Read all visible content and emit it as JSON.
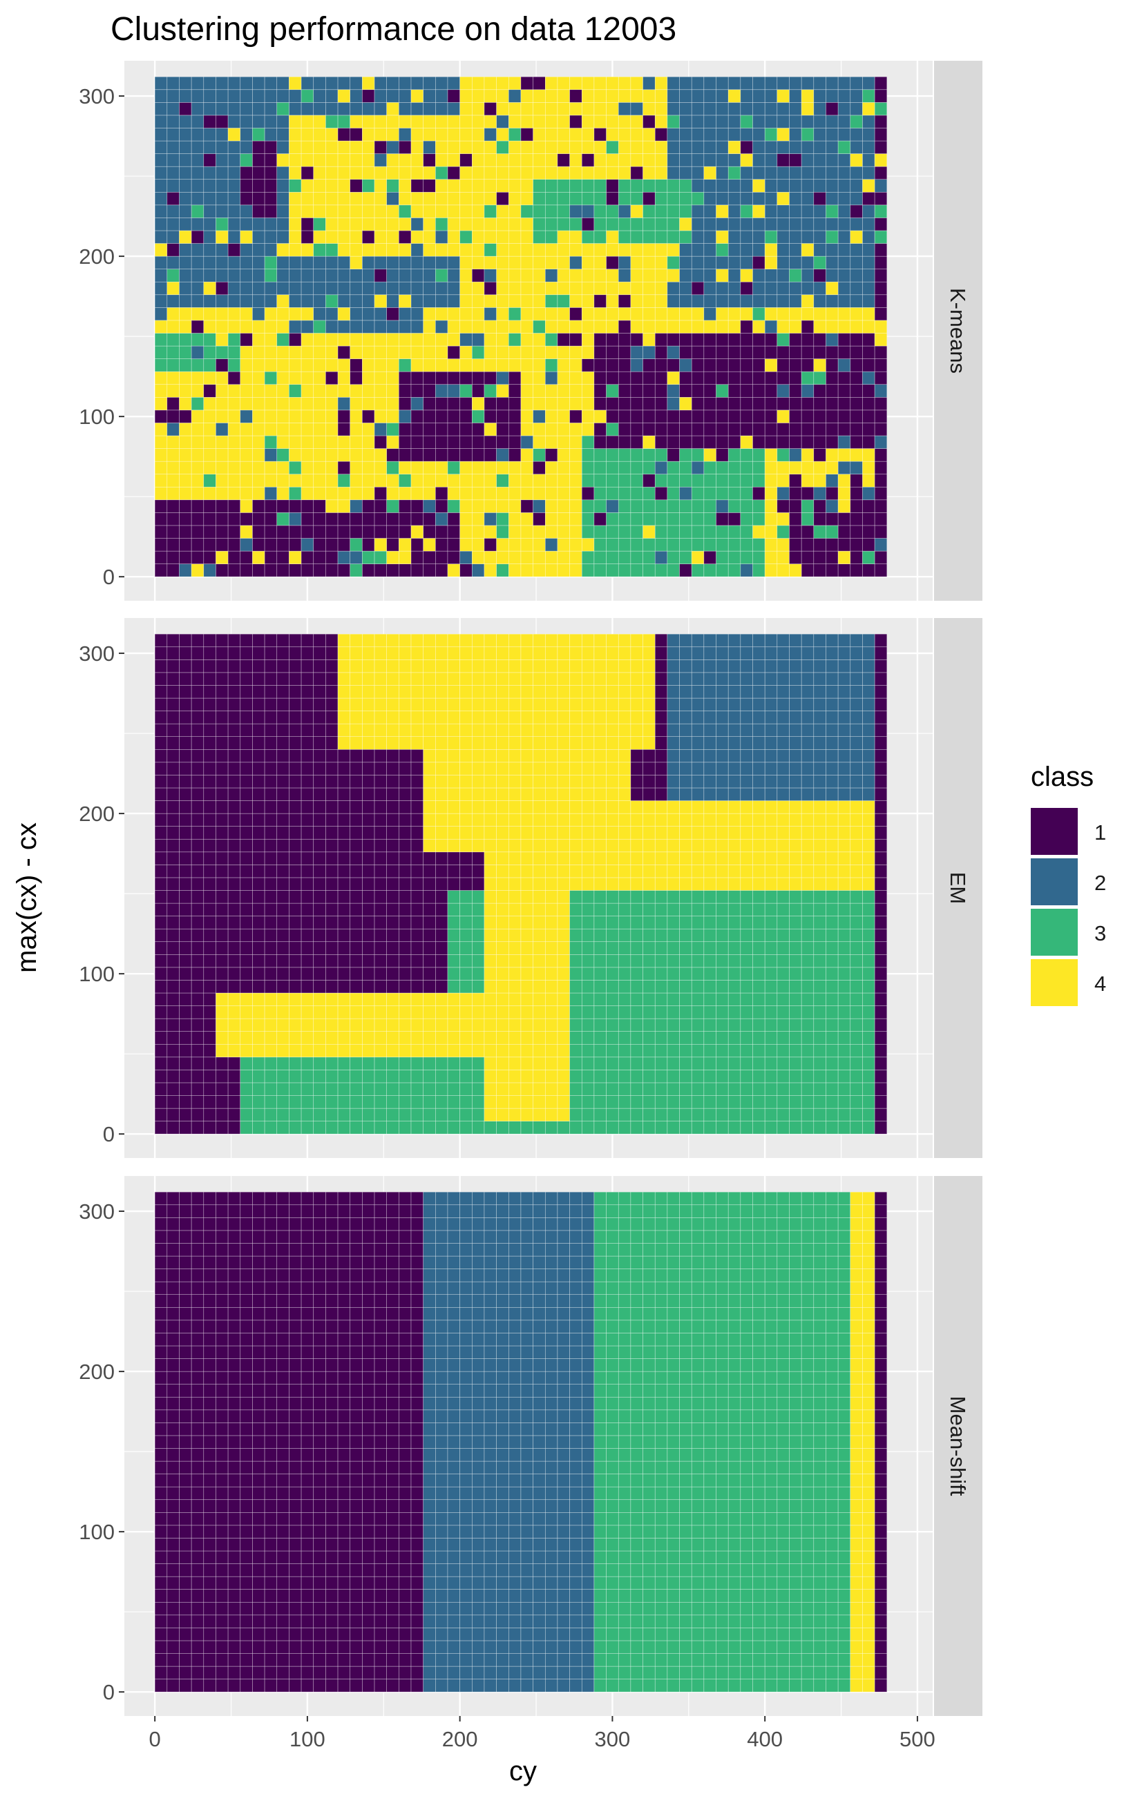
{
  "chart_data": {
    "type": "heatmap",
    "title": "Clustering performance on data 12003",
    "xlabel": "cy",
    "ylabel": "max(cx) - cx",
    "x_ticks": [
      0,
      100,
      200,
      300,
      400,
      500
    ],
    "y_ticks": [
      0,
      100,
      200,
      300
    ],
    "xlim": [
      -20,
      510
    ],
    "ylim": [
      -15,
      322
    ],
    "grid": true,
    "legend": {
      "title": "class",
      "placement": "right",
      "entries": [
        "1",
        "2",
        "3",
        "4"
      ],
      "colors": [
        "#440154",
        "#31688e",
        "#35b779",
        "#fde725"
      ]
    },
    "cell_size": 8,
    "grid_extent": {
      "x": [
        0,
        476
      ],
      "y": [
        0,
        312
      ]
    },
    "panels": [
      {
        "name": "K-means",
        "note": "approximate: class of each 8-unit cell estimated from image",
        "regions": [
          {
            "class": 2,
            "x": [
              0,
              476
            ],
            "y": [
              0,
              312
            ]
          },
          {
            "class": 4,
            "x": [
              0,
              476
            ],
            "y": [
              0,
              170
            ]
          },
          {
            "class": 4,
            "x": [
              200,
              340
            ],
            "y": [
              150,
              312
            ]
          },
          {
            "class": 4,
            "x": [
              90,
              300
            ],
            "y": [
              200,
              290
            ]
          },
          {
            "class": 1,
            "x": [
              56,
              84
            ],
            "y": [
              235,
              275
            ]
          },
          {
            "class": 1,
            "x": [
              0,
              15
            ],
            "y": [
              95,
              115
            ]
          },
          {
            "class": 1,
            "x": [
              160,
              240
            ],
            "y": [
              70,
              130
            ]
          },
          {
            "class": 1,
            "x": [
              285,
              476
            ],
            "y": [
              80,
              150
            ]
          },
          {
            "class": 1,
            "x": [
              0,
              200
            ],
            "y": [
              0,
              50
            ]
          },
          {
            "class": 1,
            "x": [
              420,
              476
            ],
            "y": [
              0,
              60
            ]
          },
          {
            "class": 2,
            "x": [
              100,
              175
            ],
            "y": [
              150,
              170
            ]
          },
          {
            "class": 3,
            "x": [
              250,
              350
            ],
            "y": [
              210,
              250
            ]
          },
          {
            "class": 3,
            "x": [
              280,
              400
            ],
            "y": [
              0,
              80
            ]
          },
          {
            "class": 3,
            "x": [
              0,
              60
            ],
            "y": [
              130,
              150
            ]
          }
        ]
      },
      {
        "name": "EM",
        "note": "approximate: class of each 8-unit cell estimated from image",
        "regions": [
          {
            "class": 3,
            "x": [
              0,
              476
            ],
            "y": [
              0,
              150
            ]
          },
          {
            "class": 1,
            "x": [
              0,
              190
            ],
            "y": [
              60,
              312
            ]
          },
          {
            "class": 1,
            "x": [
              0,
              60
            ],
            "y": [
              0,
              60
            ]
          },
          {
            "class": 2,
            "x": [
              340,
              476
            ],
            "y": [
              190,
              312
            ]
          },
          {
            "class": 2,
            "x": [
              170,
              280
            ],
            "y": [
              250,
              312
            ]
          },
          {
            "class": 4,
            "x": [
              270,
              476
            ],
            "y": [
              150,
              205
            ]
          },
          {
            "class": 4,
            "x": [
              180,
              310
            ],
            "y": [
              180,
              250
            ]
          },
          {
            "class": 4,
            "x": [
              220,
              270
            ],
            "y": [
              10,
              180
            ]
          },
          {
            "class": 4,
            "x": [
              40,
              240
            ],
            "y": [
              50,
              90
            ]
          },
          {
            "class": 4,
            "x": [
              120,
              330
            ],
            "y": [
              240,
              312
            ]
          }
        ]
      },
      {
        "name": "Mean-shift",
        "note": "approximate: column boundaries estimated from image",
        "regions": [
          {
            "class": 1,
            "x": [
              0,
              176
            ],
            "y": [
              0,
              312
            ]
          },
          {
            "class": 2,
            "x": [
              176,
              288
            ],
            "y": [
              0,
              312
            ]
          },
          {
            "class": 3,
            "x": [
              288,
              456
            ],
            "y": [
              0,
              312
            ]
          },
          {
            "class": 4,
            "x": [
              456,
              476
            ],
            "y": [
              0,
              312
            ]
          }
        ]
      }
    ]
  }
}
